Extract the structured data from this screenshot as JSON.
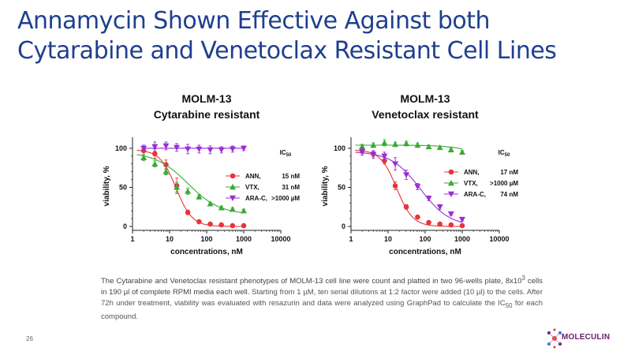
{
  "slide": {
    "title_line1": "Annamycin Shown Effective Against both",
    "title_line2": "Cytarabine and Venetoclax Resistant Cell Lines",
    "caption": {
      "p1": "The Cytarabine and Venetoclax resistant phenotypes of MOLM-13 cell line were count and platted in two 96-wells plate, 8x10",
      "p1_sup": "3",
      "p2": " cells in 190 µl of complete RPMI media each well.",
      "p3": " Starting from 1 µM, ten serial dilutions at 1:2 factor were added (10 µl) to the cells. After 72h under treatment, viability was evaluated with resazurin and data were analyzed using GraphPad to calculate the IC",
      "p3_sub": "50",
      "p4": " for each compound."
    },
    "page_number": "26",
    "logo_text": "MOLECULIN",
    "colors": {
      "title": "#1f3f8f",
      "ann": "#e8343a",
      "vtx": "#3aaa35",
      "arac": "#9a2cd6",
      "logo": "#6a1b6e"
    }
  },
  "chart_data": [
    {
      "type": "scatter",
      "title_line1": "MOLM-13",
      "title_line2": "Cytarabine resistant",
      "xlabel": "concentrations, nM",
      "ylabel": "viability, %",
      "xscale": "log",
      "xlim": [
        1,
        10000
      ],
      "ylim": [
        -5,
        108
      ],
      "xticks": [
        "1",
        "10",
        "100",
        "1000",
        "10000"
      ],
      "yticks": [
        "0",
        "50",
        "100"
      ],
      "legend_title": "IC",
      "legend_title_sub": "50",
      "legend_position": "right",
      "series": [
        {
          "name": "ANN,",
          "ic50": "15 nM",
          "marker": "circle",
          "color": "#e8343a",
          "x": [
            2,
            4,
            8,
            15.6,
            31,
            62.5,
            125,
            250,
            500,
            1000
          ],
          "y": [
            97,
            93,
            79,
            52,
            18,
            6,
            3,
            2,
            1,
            1
          ],
          "err": [
            5,
            6,
            6,
            10,
            3,
            2,
            1,
            1,
            1,
            1
          ],
          "fit": {
            "top": 98,
            "bottom": 0,
            "ic50": 15,
            "hill": 2
          }
        },
        {
          "name": "VTX,",
          "ic50": "31 nM",
          "marker": "triangle-up",
          "color": "#3aaa35",
          "x": [
            2,
            4,
            8,
            15.6,
            31,
            62.5,
            125,
            250,
            500,
            1000
          ],
          "y": [
            88,
            80,
            70,
            50,
            45,
            38,
            29,
            24,
            22,
            20
          ],
          "err": [
            4,
            4,
            4,
            6,
            4,
            3,
            2,
            2,
            2,
            2
          ],
          "fit": {
            "top": 95,
            "bottom": 15,
            "ic50": 31,
            "hill": 1
          }
        },
        {
          "name": "ARA-C,",
          "ic50": ">1000 µM",
          "marker": "triangle-down",
          "color": "#9a2cd6",
          "x": [
            2,
            4,
            8,
            15.6,
            31,
            62.5,
            125,
            250,
            500,
            1000
          ],
          "y": [
            100,
            102,
            103,
            101,
            99,
            99,
            98,
            98,
            99,
            100
          ],
          "err": [
            4,
            6,
            5,
            5,
            6,
            5,
            5,
            4,
            4,
            3
          ],
          "fit": {
            "flat": 100,
            "from": 2,
            "to": 1000
          }
        }
      ]
    },
    {
      "type": "scatter",
      "title_line1": "MOLM-13",
      "title_line2": "Venetoclax resistant",
      "xlabel": "concentrations, nM",
      "ylabel": "viability, %",
      "xscale": "log",
      "xlim": [
        1,
        10000
      ],
      "ylim": [
        -5,
        108
      ],
      "xticks": [
        "1",
        "10",
        "100",
        "1000",
        "10000"
      ],
      "yticks": [
        "0",
        "50",
        "100"
      ],
      "legend_title": "IC",
      "legend_title_sub": "50",
      "legend_position": "right",
      "series": [
        {
          "name": "ANN,",
          "ic50": "17 nM",
          "marker": "circle",
          "color": "#e8343a",
          "x": [
            2,
            4,
            8,
            15.6,
            31,
            62.5,
            125,
            250,
            500,
            1000
          ],
          "y": [
            97,
            93,
            84,
            52,
            25,
            12,
            5,
            3,
            2,
            1
          ],
          "err": [
            4,
            4,
            4,
            5,
            3,
            2,
            1,
            1,
            1,
            1
          ],
          "fit": {
            "top": 98,
            "bottom": 0,
            "ic50": 17,
            "hill": 2
          }
        },
        {
          "name": "VTX,",
          "ic50": ">1000 µM",
          "marker": "triangle-up",
          "color": "#3aaa35",
          "x": [
            2,
            4,
            8,
            15.6,
            31,
            62.5,
            125,
            250,
            500,
            1000
          ],
          "y": [
            102,
            104,
            107,
            105,
            106,
            104,
            102,
            101,
            98,
            95
          ],
          "err": [
            3,
            3,
            4,
            3,
            3,
            3,
            2,
            2,
            2,
            2
          ],
          "fit": {
            "top": 104,
            "bottom": 50,
            "ic50": 10000,
            "hill": 1
          }
        },
        {
          "name": "ARA-C,",
          "ic50": "74 nM",
          "marker": "triangle-down",
          "color": "#9a2cd6",
          "x": [
            2,
            4,
            8,
            15.6,
            31,
            62.5,
            125,
            250,
            500,
            1000
          ],
          "y": [
            96,
            92,
            90,
            80,
            66,
            51,
            36,
            25,
            16,
            9
          ],
          "err": [
            5,
            5,
            5,
            8,
            6,
            4,
            3,
            3,
            2,
            2
          ],
          "fit": {
            "top": 96,
            "bottom": 0,
            "ic50": 74,
            "hill": 1.1
          }
        }
      ]
    }
  ]
}
